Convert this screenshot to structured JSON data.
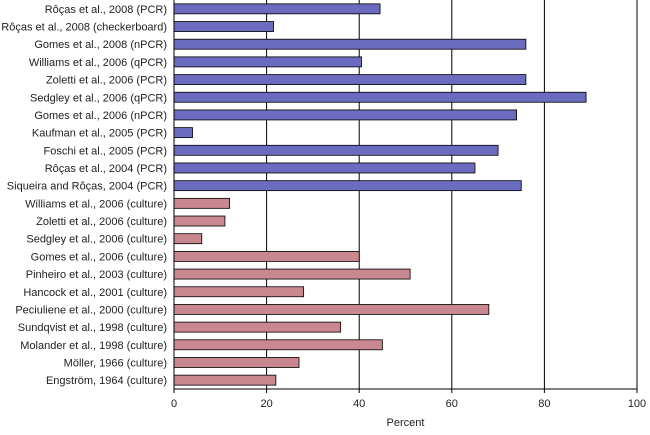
{
  "chart_data": {
    "type": "bar",
    "orientation": "horizontal",
    "xlabel": "Percent",
    "ylabel": "",
    "title": "",
    "xlim": [
      0,
      100
    ],
    "xticks": [
      0,
      20,
      40,
      60,
      80,
      100
    ],
    "grid": "vertical lines at 20, 40, 60, 80, 100",
    "colors": {
      "pcr": "#6b6bbf",
      "culture": "#c98790",
      "edge": "#000000",
      "grid": "#000000"
    },
    "categories": [
      "Rôças et al., 2008 (PCR)",
      "Rôças et al., 2008 (checkerboard)",
      "Gomes et al., 2008 (nPCR)",
      "Williams et al., 2006 (qPCR)",
      "Zoletti et al., 2006 (PCR)",
      "Sedgley et al., 2006 (qPCR)",
      "Gomes et al., 2006 (nPCR)",
      "Kaufman et al., 2005 (PCR)",
      "Foschi et al., 2005 (PCR)",
      "Rôças et al., 2004 (PCR)",
      "Siqueira and Rôças, 2004 (PCR)",
      "Williams et al., 2006 (culture)",
      "Zoletti et al., 2006 (culture)",
      "Sedgley et al., 2006 (culture)",
      "Gomes et al., 2006 (culture)",
      "Pinheiro et al., 2003 (culture)",
      "Hancock et al., 2001 (culture)",
      "Peciuliene et al., 2000 (culture)",
      "Sundqvist et al., 1998 (culture)",
      "Molander et al., 1998 (culture)",
      "Möller, 1966 (culture)",
      "Engström, 1964 (culture)"
    ],
    "values": [
      44.5,
      21.5,
      76,
      40.5,
      76,
      89,
      74,
      4,
      70,
      65,
      75,
      12,
      11,
      6,
      40,
      51,
      28,
      68,
      36,
      45,
      27,
      22
    ],
    "groups": [
      "pcr",
      "pcr",
      "pcr",
      "pcr",
      "pcr",
      "pcr",
      "pcr",
      "pcr",
      "pcr",
      "pcr",
      "pcr",
      "culture",
      "culture",
      "culture",
      "culture",
      "culture",
      "culture",
      "culture",
      "culture",
      "culture",
      "culture",
      "culture"
    ]
  }
}
